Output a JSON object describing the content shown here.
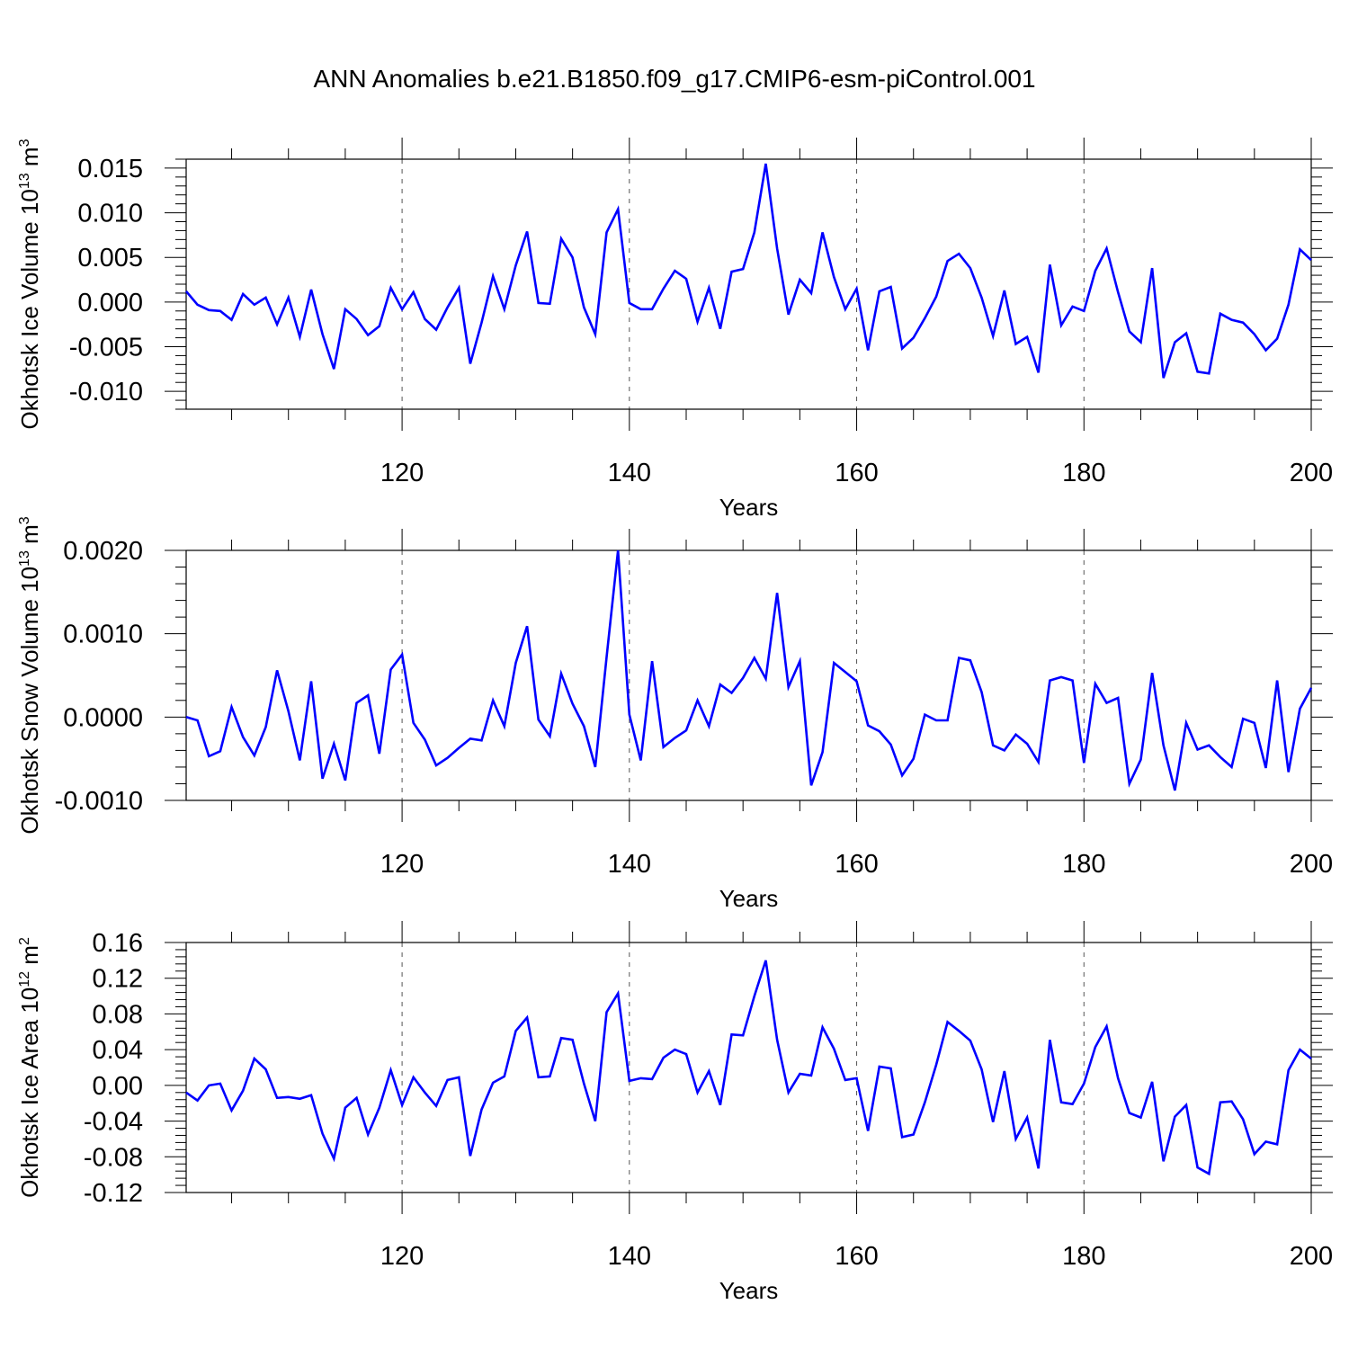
{
  "title": "ANN Anomalies b.e21.B1850.f09_g17.CMIP6-esm-piControl.001",
  "colors": {
    "line": "#0000ff",
    "axis": "#000000",
    "grid": "#555555"
  },
  "chart_data": [
    {
      "type": "line",
      "ylabel": "Okhotsk Ice Volume 10",
      "ylabel_exp": "13",
      "ylabel_unit": " m",
      "ylabel_unit_exp": "3",
      "xlabel": "Years",
      "xlim": [
        101,
        200
      ],
      "ylim": [
        -0.012,
        0.016
      ],
      "yticks": [
        -0.01,
        -0.005,
        0.0,
        0.005,
        0.01,
        0.015
      ],
      "ytick_labels": [
        "-0.010",
        "-0.005",
        "0.000",
        "0.005",
        "0.010",
        "0.015"
      ],
      "xticks": [
        120,
        140,
        160,
        180,
        200
      ],
      "xtick_labels": [
        "120",
        "140",
        "160",
        "180",
        "200"
      ],
      "grid": "vertical dashed at x ticks",
      "x_start": 101,
      "series": [
        {
          "values": [
            0.0012,
            -0.0003,
            -0.0009,
            -0.001,
            -0.002,
            0.0009,
            -0.0003,
            0.0005,
            -0.0025,
            0.0005,
            -0.0039,
            0.0014,
            -0.0036,
            -0.0075,
            -0.0008,
            -0.0019,
            -0.0037,
            -0.0027,
            0.0016,
            -0.0008,
            0.0011,
            -0.0019,
            -0.0031,
            -0.0006,
            0.0016,
            -0.0069,
            -0.0023,
            0.0029,
            -0.0008,
            0.0041,
            0.0079,
            -0.0001,
            -0.0002,
            0.0071,
            0.005,
            -0.0006,
            -0.0036,
            0.0078,
            0.0104,
            -0.0001,
            -0.0008,
            -0.0008,
            0.0015,
            0.0035,
            0.0026,
            -0.0022,
            0.0016,
            -0.003,
            0.0034,
            0.0037,
            0.0078,
            0.0155,
            0.006,
            -0.0014,
            0.0025,
            0.001,
            0.0078,
            0.0028,
            -0.0008,
            0.0015,
            -0.0054,
            0.0012,
            0.0017,
            -0.0052,
            -0.004,
            -0.0018,
            0.0006,
            0.0046,
            0.0054,
            0.0038,
            0.0005,
            -0.0038,
            0.0013,
            -0.0047,
            -0.0039,
            -0.0079,
            0.0042,
            -0.0026,
            -0.0005,
            -0.001,
            0.0035,
            0.006,
            0.0011,
            -0.0033,
            -0.0045,
            0.0038,
            -0.0085,
            -0.0045,
            -0.0035,
            -0.0078,
            -0.008,
            -0.0013,
            -0.002,
            -0.0023,
            -0.0036,
            -0.0054,
            -0.0041,
            -0.0003,
            0.0059,
            0.0047
          ]
        }
      ]
    },
    {
      "type": "line",
      "ylabel": "Okhotsk Snow Volume 10",
      "ylabel_exp": "13",
      "ylabel_unit": " m",
      "ylabel_unit_exp": "3",
      "xlabel": "Years",
      "xlim": [
        101,
        200
      ],
      "ylim": [
        -0.001,
        0.002
      ],
      "yticks": [
        -0.001,
        0.0,
        0.001,
        0.002
      ],
      "ytick_labels": [
        "-0.0010",
        "0.0000",
        "0.0010",
        "0.0020"
      ],
      "xticks": [
        120,
        140,
        160,
        180,
        200
      ],
      "xtick_labels": [
        "120",
        "140",
        "160",
        "180",
        "200"
      ],
      "grid": "vertical dashed at x ticks",
      "x_start": 101,
      "series": [
        {
          "values": [
            0.0,
            -4e-05,
            -0.00047,
            -0.00041,
            0.00012,
            -0.00024,
            -0.00046,
            -0.00012,
            0.00056,
            7e-05,
            -0.00052,
            0.00043,
            -0.00074,
            -0.00032,
            -0.00076,
            0.00017,
            0.00026,
            -0.00044,
            0.00057,
            0.00075,
            -7e-05,
            -0.00027,
            -0.00058,
            -0.00049,
            -0.00037,
            -0.00026,
            -0.00028,
            0.0002,
            -0.00011,
            0.00065,
            0.00109,
            -3e-05,
            -0.00023,
            0.00052,
            0.00016,
            -0.00011,
            -0.0006,
            0.00072,
            0.002,
            3e-05,
            -0.00052,
            0.00067,
            -0.00036,
            -0.00025,
            -0.00016,
            0.0002,
            -0.00011,
            0.00039,
            0.00029,
            0.00047,
            0.00071,
            0.00046,
            0.00149,
            0.00036,
            0.00067,
            -0.00082,
            -0.00042,
            0.00065,
            0.00054,
            0.00043,
            -0.0001,
            -0.00017,
            -0.00033,
            -0.0007,
            -0.0005,
            3e-05,
            -4e-05,
            -4e-05,
            0.00071,
            0.00068,
            0.0003,
            -0.00034,
            -0.0004,
            -0.00021,
            -0.00032,
            -0.00054,
            0.00044,
            0.00048,
            0.00044,
            -0.00055,
            0.0004,
            0.00017,
            0.00023,
            -0.0008,
            -0.00051,
            0.00053,
            -0.00034,
            -0.00088,
            -7e-05,
            -0.00039,
            -0.00034,
            -0.00048,
            -0.0006,
            -2e-05,
            -7e-05,
            -0.00061,
            0.00044,
            -0.00066,
            0.0001,
            0.00035
          ]
        }
      ]
    },
    {
      "type": "line",
      "ylabel": "Okhotsk Ice Area 10",
      "ylabel_exp": "12",
      "ylabel_unit": " m",
      "ylabel_unit_exp": "2",
      "xlabel": "Years",
      "xlim": [
        101,
        200
      ],
      "ylim": [
        -0.12,
        0.16
      ],
      "yticks": [
        -0.12,
        -0.08,
        -0.04,
        0.0,
        0.04,
        0.08,
        0.12,
        0.16
      ],
      "ytick_labels": [
        "-0.12",
        "-0.08",
        "-0.04",
        "0.00",
        "0.04",
        "0.08",
        "0.12",
        "0.16"
      ],
      "xticks": [
        120,
        140,
        160,
        180,
        200
      ],
      "xtick_labels": [
        "120",
        "140",
        "160",
        "180",
        "200"
      ],
      "grid": "vertical dashed at x ticks",
      "x_start": 101,
      "series": [
        {
          "values": [
            -0.008,
            -0.017,
            0.0,
            0.002,
            -0.028,
            -0.006,
            0.03,
            0.018,
            -0.014,
            -0.013,
            -0.015,
            -0.011,
            -0.054,
            -0.082,
            -0.025,
            -0.014,
            -0.055,
            -0.025,
            0.017,
            -0.022,
            0.009,
            -0.008,
            -0.023,
            0.006,
            0.009,
            -0.079,
            -0.027,
            0.003,
            0.01,
            0.061,
            0.076,
            0.009,
            0.01,
            0.053,
            0.051,
            0.002,
            -0.04,
            0.082,
            0.103,
            0.005,
            0.008,
            0.007,
            0.031,
            0.04,
            0.035,
            -0.008,
            0.016,
            -0.022,
            0.057,
            0.056,
            0.1,
            0.14,
            0.051,
            -0.008,
            0.013,
            0.011,
            0.065,
            0.041,
            0.006,
            0.008,
            -0.051,
            0.021,
            0.019,
            -0.058,
            -0.055,
            -0.019,
            0.023,
            0.071,
            0.061,
            0.05,
            0.018,
            -0.041,
            0.016,
            -0.06,
            -0.036,
            -0.093,
            0.051,
            -0.019,
            -0.021,
            0.002,
            0.043,
            0.066,
            0.008,
            -0.031,
            -0.036,
            0.004,
            -0.085,
            -0.035,
            -0.022,
            -0.092,
            -0.099,
            -0.019,
            -0.018,
            -0.038,
            -0.077,
            -0.063,
            -0.066,
            0.017,
            0.04,
            0.03
          ]
        }
      ]
    }
  ]
}
